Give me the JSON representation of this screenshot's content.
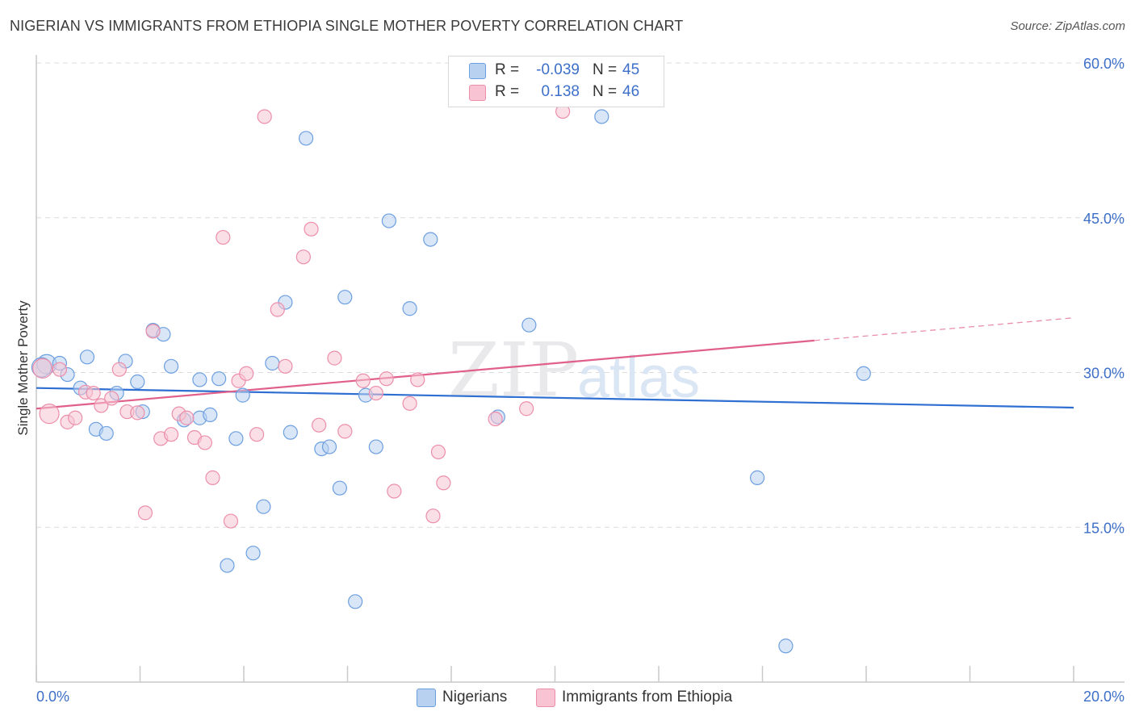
{
  "title": "NIGERIAN VS IMMIGRANTS FROM ETHIOPIA SINGLE MOTHER POVERTY CORRELATION CHART",
  "source": "Source: ZipAtlas.com",
  "watermark": {
    "zip": "ZIP",
    "atlas": "atlas"
  },
  "legend": {
    "r_label": "R =",
    "n_label": "N =",
    "rows": [
      {
        "r": "-0.039",
        "n": "45",
        "fill": "#b8d1f1",
        "stroke": "#6d9fe0"
      },
      {
        "r": "0.138",
        "n": "46",
        "fill": "#f8c4d4",
        "stroke": "#ec8eaa"
      }
    ]
  },
  "bottom_legend": [
    {
      "label": "Nigerians",
      "fill": "#b8d1f1",
      "stroke": "#6d9fe0"
    },
    {
      "label": "Immigrants from Ethiopia",
      "fill": "#f8c4d4",
      "stroke": "#ec8eaa"
    }
  ],
  "chart_data": {
    "type": "scatter",
    "ylabel": "Single Mother Poverty",
    "xlim": [
      0,
      20
    ],
    "ylim": [
      0,
      60
    ],
    "x_tick_labels": [
      "0.0%",
      "20.0%"
    ],
    "y_ticks": [
      15,
      30,
      45,
      60
    ],
    "y_tick_labels": [
      "15.0%",
      "30.0%",
      "45.0%",
      "60.0%"
    ],
    "grid": true,
    "series": [
      {
        "name": "Nigerians",
        "color": "#6d9fe0",
        "fill": "#b8d1f1",
        "trend": {
          "x": [
            0,
            20
          ],
          "y": [
            28.5,
            26.6
          ],
          "color": "#2e6fd1"
        },
        "points": [
          [
            0.2,
            30.8
          ],
          [
            0.45,
            30.9
          ],
          [
            0.6,
            29.8
          ],
          [
            0.85,
            28.5
          ],
          [
            0.98,
            31.5
          ],
          [
            1.15,
            24.5
          ],
          [
            1.35,
            24.1
          ],
          [
            1.55,
            28.0
          ],
          [
            1.72,
            31.1
          ],
          [
            1.95,
            29.1
          ],
          [
            2.05,
            26.2
          ],
          [
            2.25,
            34.1
          ],
          [
            2.45,
            33.7
          ],
          [
            2.6,
            30.6
          ],
          [
            2.85,
            25.4
          ],
          [
            3.15,
            25.6
          ],
          [
            3.15,
            29.3
          ],
          [
            3.35,
            25.9
          ],
          [
            3.52,
            29.4
          ],
          [
            3.68,
            11.3
          ],
          [
            3.85,
            23.6
          ],
          [
            3.98,
            27.8
          ],
          [
            4.18,
            12.5
          ],
          [
            4.38,
            17.0
          ],
          [
            4.55,
            30.9
          ],
          [
            4.8,
            36.8
          ],
          [
            4.9,
            24.2
          ],
          [
            5.2,
            52.7
          ],
          [
            5.5,
            22.6
          ],
          [
            5.65,
            22.8
          ],
          [
            5.85,
            18.8
          ],
          [
            5.95,
            37.3
          ],
          [
            6.15,
            7.8
          ],
          [
            6.35,
            27.8
          ],
          [
            6.55,
            22.8
          ],
          [
            6.8,
            44.7
          ],
          [
            7.2,
            36.2
          ],
          [
            7.6,
            42.9
          ],
          [
            8.9,
            25.7
          ],
          [
            9.5,
            34.6
          ],
          [
            10.9,
            54.8
          ],
          [
            13.9,
            19.8
          ],
          [
            14.45,
            3.5
          ],
          [
            15.95,
            29.9
          ],
          [
            0.1,
            30.5
          ]
        ]
      },
      {
        "name": "Immigrants from Ethiopia",
        "color": "#ec8eaa",
        "fill": "#f8c4d4",
        "trend": {
          "x": [
            0,
            15
          ],
          "y": [
            26.5,
            33.1
          ],
          "dashed_to": [
            20,
            35.3
          ],
          "color": "#e0608a"
        },
        "points": [
          [
            0.12,
            30.4
          ],
          [
            0.25,
            26.0
          ],
          [
            0.45,
            30.3
          ],
          [
            0.6,
            25.2
          ],
          [
            0.75,
            25.6
          ],
          [
            0.95,
            28.1
          ],
          [
            1.1,
            28.0
          ],
          [
            1.25,
            26.8
          ],
          [
            1.45,
            27.5
          ],
          [
            1.6,
            30.3
          ],
          [
            1.75,
            26.2
          ],
          [
            1.95,
            26.1
          ],
          [
            2.1,
            16.4
          ],
          [
            2.25,
            34.0
          ],
          [
            2.4,
            23.6
          ],
          [
            2.6,
            24.0
          ],
          [
            2.75,
            26.0
          ],
          [
            2.9,
            25.6
          ],
          [
            3.05,
            23.7
          ],
          [
            3.25,
            23.2
          ],
          [
            3.4,
            19.8
          ],
          [
            3.6,
            43.1
          ],
          [
            3.75,
            15.6
          ],
          [
            3.9,
            29.2
          ],
          [
            4.05,
            29.9
          ],
          [
            4.25,
            24.0
          ],
          [
            4.4,
            54.8
          ],
          [
            4.65,
            36.1
          ],
          [
            4.8,
            30.6
          ],
          [
            5.15,
            41.2
          ],
          [
            5.3,
            43.9
          ],
          [
            5.45,
            24.9
          ],
          [
            5.75,
            31.4
          ],
          [
            5.95,
            24.3
          ],
          [
            6.3,
            29.2
          ],
          [
            6.55,
            28.0
          ],
          [
            6.75,
            29.4
          ],
          [
            6.9,
            18.5
          ],
          [
            7.2,
            27.0
          ],
          [
            7.35,
            29.3
          ],
          [
            7.65,
            16.1
          ],
          [
            7.75,
            22.3
          ],
          [
            7.85,
            19.3
          ],
          [
            8.85,
            25.5
          ],
          [
            9.45,
            26.5
          ],
          [
            10.15,
            55.3
          ]
        ]
      }
    ]
  }
}
